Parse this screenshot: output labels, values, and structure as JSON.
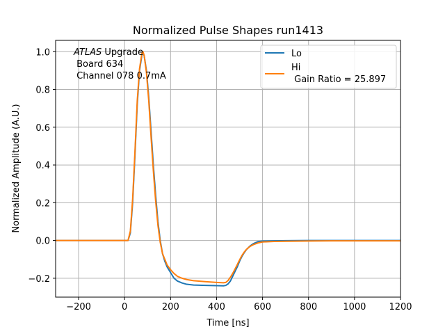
{
  "chart_data": {
    "type": "line",
    "title": "Normalized Pulse Shapes run1413",
    "xlabel": "Time [ns]",
    "ylabel": "Normalized Amplitude (A.U.)",
    "xlim": [
      -300,
      1200
    ],
    "ylim": [
      -0.3,
      1.06
    ],
    "xticks": [
      -200,
      0,
      200,
      400,
      600,
      800,
      1000,
      1200
    ],
    "xtick_labels": [
      "−200",
      "0",
      "200",
      "400",
      "600",
      "800",
      "1000",
      "1200"
    ],
    "yticks": [
      -0.2,
      0.0,
      0.2,
      0.4,
      0.6,
      0.8,
      1.0
    ],
    "ytick_labels": [
      "−0.2",
      "0.0",
      "0.2",
      "0.4",
      "0.6",
      "0.8",
      "1.0"
    ],
    "grid": true,
    "legend_position": "top-right",
    "annotation": {
      "line1_italic": "ATLAS",
      "line1_rest": " Upgrade",
      "line2": " Board 634",
      "line3": " Channel 078 0.7mA"
    },
    "series": [
      {
        "name": "Lo",
        "legend_label_lines": [
          "Lo"
        ],
        "color": "#1f77b4",
        "x": [
          -300,
          -100,
          0,
          15,
          25,
          35,
          45,
          55,
          65,
          75,
          80,
          85,
          95,
          105,
          115,
          125,
          135,
          145,
          155,
          165,
          175,
          185,
          200,
          215,
          230,
          250,
          270,
          300,
          350,
          400,
          430,
          440,
          450,
          460,
          470,
          480,
          490,
          500,
          510,
          520,
          530,
          545,
          560,
          580,
          600,
          650,
          700,
          800,
          900,
          1000,
          1100,
          1200
        ],
        "y": [
          0.0,
          0.0,
          0.0,
          0.0,
          0.04,
          0.2,
          0.45,
          0.72,
          0.9,
          0.98,
          0.995,
          0.98,
          0.9,
          0.76,
          0.58,
          0.4,
          0.24,
          0.1,
          0.0,
          -0.07,
          -0.11,
          -0.14,
          -0.17,
          -0.2,
          -0.215,
          -0.225,
          -0.232,
          -0.236,
          -0.238,
          -0.239,
          -0.24,
          -0.238,
          -0.23,
          -0.215,
          -0.19,
          -0.165,
          -0.14,
          -0.11,
          -0.085,
          -0.065,
          -0.048,
          -0.03,
          -0.017,
          -0.006,
          -0.003,
          -0.002,
          -0.001,
          0.0,
          0.0,
          0.0,
          0.0,
          0.0
        ]
      },
      {
        "name": "Hi",
        "legend_label_lines": [
          "Hi",
          " Gain Ratio = 25.897"
        ],
        "color": "#ff7f0e",
        "x": [
          -300,
          -100,
          0,
          15,
          25,
          35,
          45,
          55,
          65,
          75,
          80,
          85,
          95,
          105,
          115,
          125,
          135,
          145,
          155,
          165,
          175,
          185,
          200,
          215,
          230,
          250,
          270,
          300,
          350,
          400,
          430,
          440,
          450,
          460,
          470,
          480,
          490,
          500,
          510,
          520,
          530,
          545,
          560,
          580,
          600,
          650,
          700,
          800,
          900,
          1000,
          1100,
          1200
        ],
        "y": [
          0.0,
          0.0,
          0.0,
          0.0,
          0.05,
          0.22,
          0.47,
          0.74,
          0.91,
          0.99,
          1.0,
          0.98,
          0.89,
          0.74,
          0.55,
          0.37,
          0.21,
          0.08,
          -0.01,
          -0.07,
          -0.1,
          -0.13,
          -0.155,
          -0.175,
          -0.19,
          -0.2,
          -0.207,
          -0.213,
          -0.218,
          -0.222,
          -0.224,
          -0.222,
          -0.212,
          -0.195,
          -0.175,
          -0.152,
          -0.128,
          -0.103,
          -0.08,
          -0.062,
          -0.047,
          -0.032,
          -0.022,
          -0.013,
          -0.008,
          -0.005,
          -0.004,
          -0.003,
          -0.002,
          -0.002,
          -0.002,
          -0.002
        ]
      }
    ]
  }
}
